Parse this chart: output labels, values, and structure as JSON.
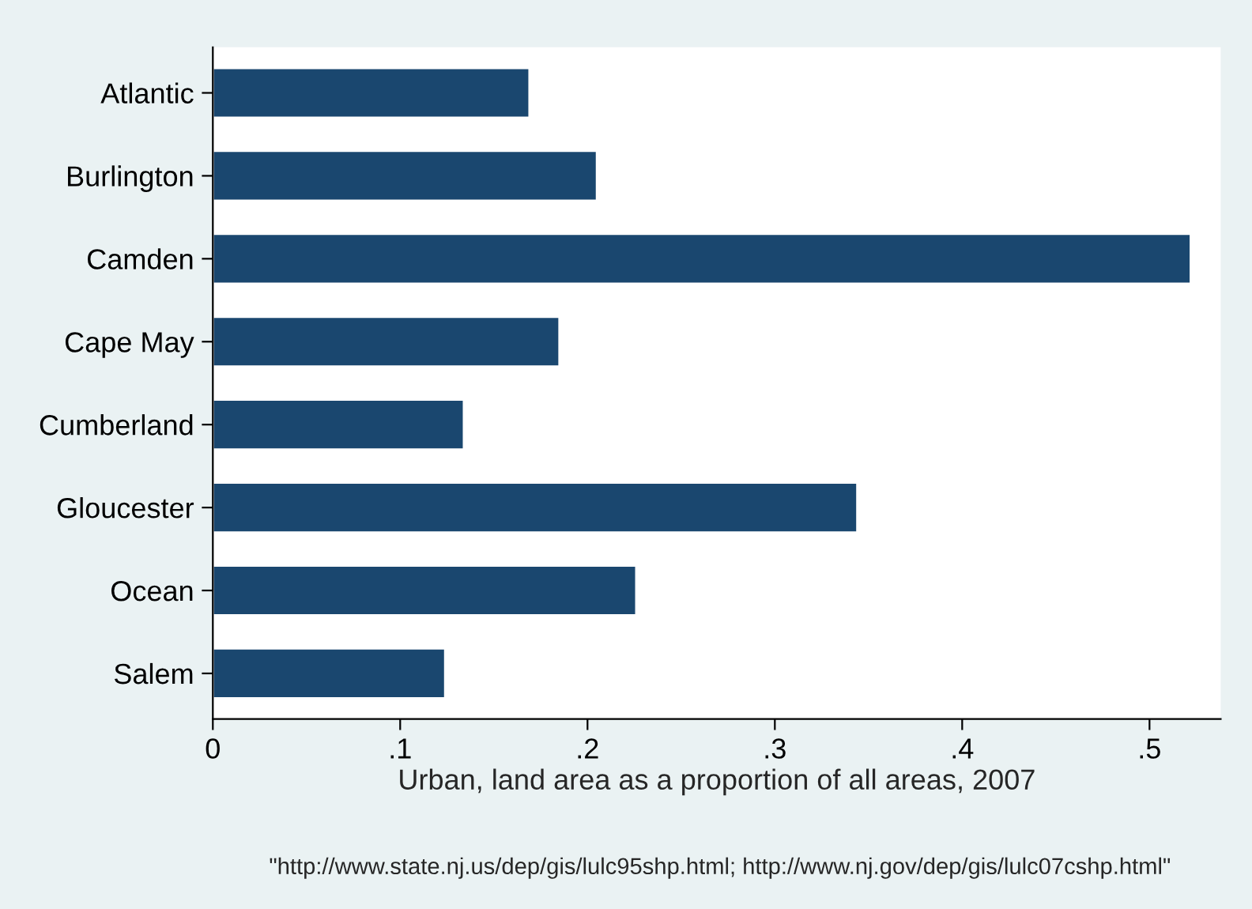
{
  "chart_data": {
    "type": "bar",
    "orientation": "horizontal",
    "xlabel": "Urban, land area as a proportion of all areas, 2007",
    "categories": [
      "Atlantic",
      "Burlington",
      "Camden",
      "Cape May",
      "Cumberland",
      "Gloucester",
      "Ocean",
      "Salem"
    ],
    "values": [
      0.169,
      0.205,
      0.522,
      0.185,
      0.134,
      0.344,
      0.226,
      0.124
    ],
    "color": "#1a476f",
    "xlim": [
      0,
      0.538
    ],
    "xticks": [
      0,
      {
        "value": 0.1,
        "label": ".1"
      },
      {
        "value": 0.2,
        "label": ".2"
      },
      {
        "value": 0.3,
        "label": ".3"
      },
      {
        "value": 0.4,
        "label": ".4"
      },
      {
        "value": 0.5,
        "label": ".5"
      }
    ],
    "grid": false,
    "legend": false,
    "annotations": [
      "\"http://www.state.nj.us/dep/gis/lulc95shp.html; http://www.nj.gov/dep/gis/lulc07cshp.html\""
    ]
  }
}
